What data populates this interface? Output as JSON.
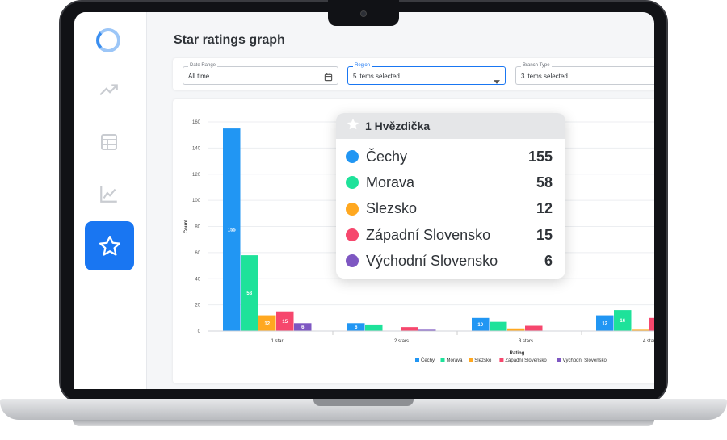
{
  "page": {
    "title": "Star ratings graph"
  },
  "sidebar": {
    "items": [
      {
        "icon": "logo-ring-icon"
      },
      {
        "icon": "trending-up-icon"
      },
      {
        "icon": "table-icon"
      },
      {
        "icon": "line-chart-icon"
      },
      {
        "icon": "star-icon",
        "active": true
      }
    ],
    "accent": "#1976f2"
  },
  "filters": {
    "date_range": {
      "label": "Date Range",
      "value": "All time"
    },
    "region": {
      "label": "Region",
      "value": "5 items selected"
    },
    "branch_type": {
      "label": "Branch Type",
      "value": "3 items selected"
    }
  },
  "tooltip": {
    "title": "1 Hvězdička",
    "rows": [
      {
        "name": "Čechy",
        "value": "155"
      },
      {
        "name": "Morava",
        "value": "58"
      },
      {
        "name": "Slezsko",
        "value": "12"
      },
      {
        "name": "Západní Slovensko",
        "value": "15"
      },
      {
        "name": "Východní Slovensko",
        "value": "6"
      }
    ]
  },
  "chart_data": {
    "type": "bar",
    "xlabel": "Rating",
    "ylabel": "Count",
    "ylim": [
      0,
      160
    ],
    "yticks": [
      0,
      20,
      40,
      60,
      80,
      100,
      120,
      140,
      160
    ],
    "categories": [
      "1 star",
      "2 stars",
      "3 stars",
      "4 stars"
    ],
    "grid": true,
    "legend_position": "bottom",
    "series": [
      {
        "name": "Čechy",
        "color": "#2196f3",
        "values": [
          155,
          6,
          10,
          12
        ],
        "labels": [
          "155",
          "6",
          "10",
          "12"
        ]
      },
      {
        "name": "Morava",
        "color": "#1ee29a",
        "values": [
          58,
          5,
          7,
          16
        ],
        "labels": [
          "58",
          "",
          "",
          "16"
        ]
      },
      {
        "name": "Slezsko",
        "color": "#ffa820",
        "values": [
          12,
          0,
          2,
          1
        ],
        "labels": [
          "12",
          "",
          "",
          ""
        ]
      },
      {
        "name": "Západní Slovensko",
        "color": "#f6476d",
        "values": [
          15,
          3,
          4,
          10
        ],
        "labels": [
          "15",
          "",
          "",
          ""
        ]
      },
      {
        "name": "Východní Slovensko",
        "color": "#7e57c2",
        "values": [
          6,
          1,
          0,
          0
        ],
        "labels": [
          "6",
          "",
          "",
          ""
        ]
      }
    ]
  }
}
